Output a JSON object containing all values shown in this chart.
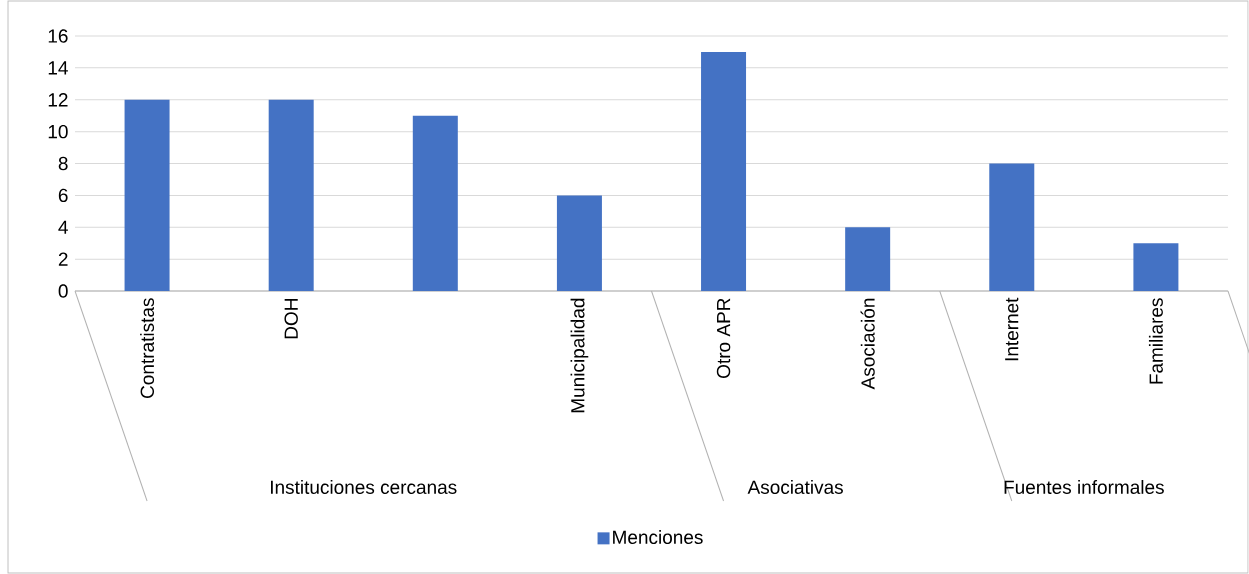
{
  "chart_data": {
    "type": "bar",
    "categories": [
      "Contratistas",
      "DOH",
      null,
      "Municipalidad",
      "Otro APR",
      "Asociación",
      "Internet",
      "Familiares"
    ],
    "series": [
      {
        "name": "Menciones",
        "color": "#4472c4",
        "values": [
          12,
          12,
          11,
          6,
          15,
          4,
          8,
          3
        ]
      }
    ],
    "ylim": [
      0,
      16
    ],
    "yticks": [
      0,
      2,
      4,
      6,
      8,
      10,
      12,
      14,
      16
    ],
    "grid": "y",
    "legend": "bottom",
    "annotations": [
      "Instituciones cercanas",
      "Asociativas",
      "Fuentes informales"
    ]
  }
}
